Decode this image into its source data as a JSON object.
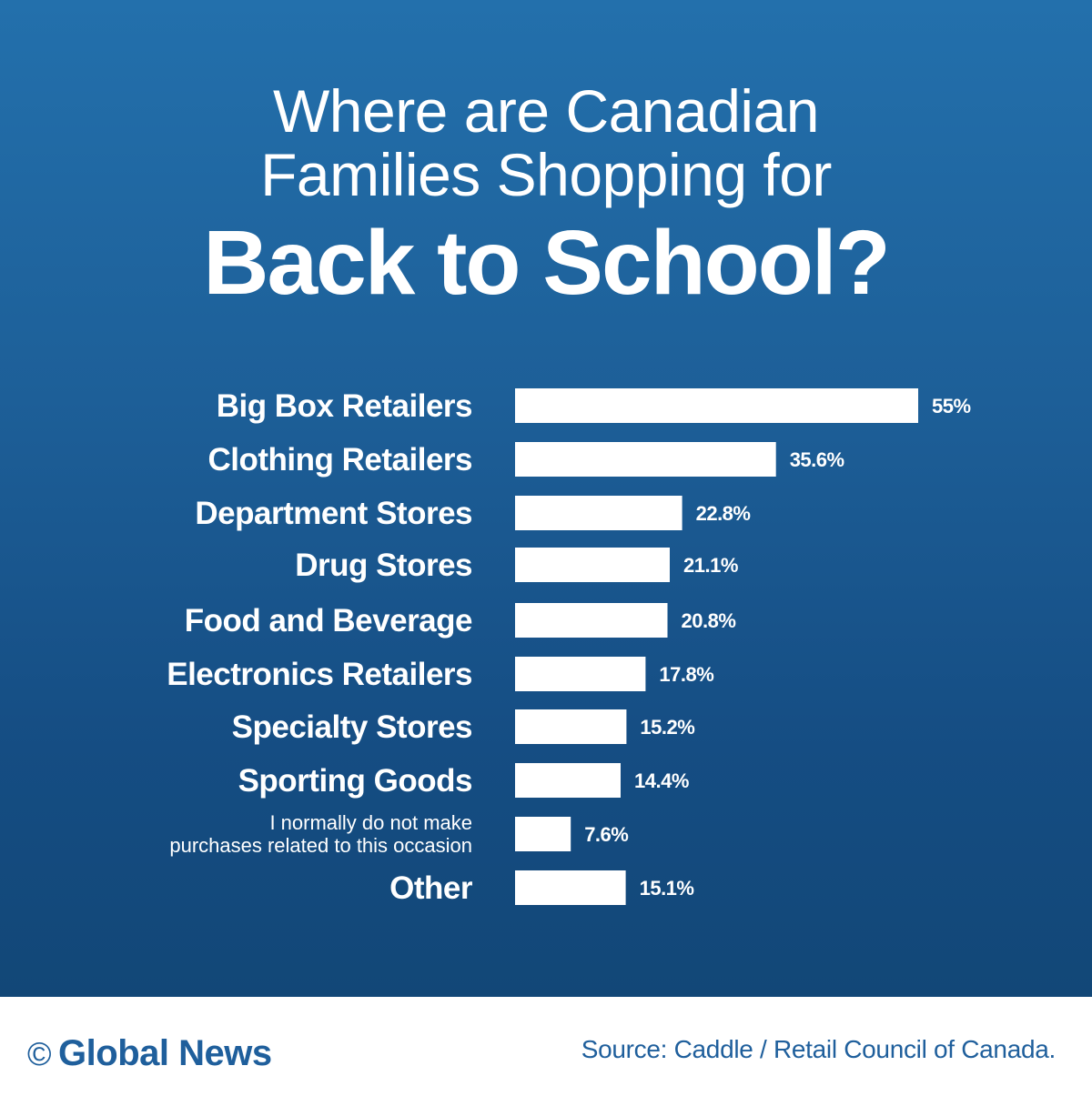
{
  "title": {
    "line1": "Where are Canadian",
    "line2": "Families Shopping for",
    "line3": "Back to School?"
  },
  "chart_data": {
    "type": "bar",
    "orientation": "horizontal",
    "categories": [
      "Big Box Retailers",
      "Clothing Retailers",
      "Department Stores",
      "Drug Stores",
      "Food and Beverage",
      "Electronics Retailers",
      "Specialty Stores",
      "Sporting Goods",
      [
        "I normally do not make",
        "purchases related to this occasion"
      ],
      "Other"
    ],
    "values": [
      55,
      35.6,
      22.8,
      21.1,
      20.8,
      17.8,
      15.2,
      14.4,
      7.6,
      15.1
    ],
    "value_labels": [
      "55%",
      "35.6%",
      "22.8%",
      "21.1%",
      "20.8%",
      "17.8%",
      "15.2%",
      "14.4%",
      "7.6%",
      "15.1%"
    ],
    "xlim": [
      0,
      55
    ],
    "grid": false,
    "bar_color": "#ffffff",
    "background_color": "#1d5f98"
  },
  "footer": {
    "copyright_symbol": "©",
    "brand": "Global News",
    "source": "Source: Caddle / Retail Council of Canada."
  },
  "colors": {
    "brand_blue": "#1f5f9c"
  }
}
